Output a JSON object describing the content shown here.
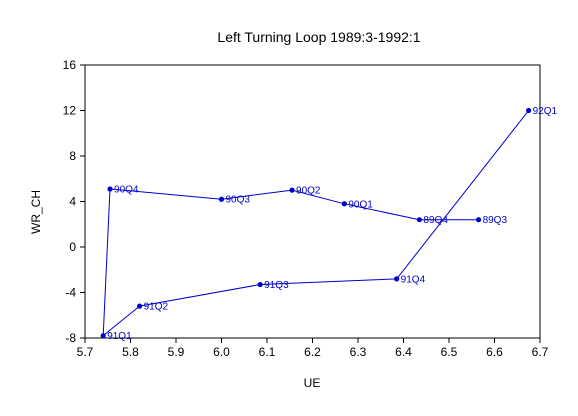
{
  "chart_data": {
    "type": "line",
    "title": "Left Turning Loop 1989:3-1992:1",
    "xlabel": "UE",
    "ylabel": "WR_CH",
    "xlim": [
      5.7,
      6.7
    ],
    "ylim": [
      -8,
      16
    ],
    "x_ticks": [
      "5.7",
      "5.8",
      "5.9",
      "6.0",
      "6.1",
      "6.2",
      "6.3",
      "6.4",
      "6.5",
      "6.6",
      "6.7"
    ],
    "y_ticks": [
      "-8",
      "-4",
      "0",
      "4",
      "8",
      "12",
      "16"
    ],
    "grid": false,
    "line_color": "#0000CC",
    "points": [
      {
        "label": "89Q3",
        "x": 6.565,
        "y": 2.4
      },
      {
        "label": "89Q4",
        "x": 6.435,
        "y": 2.4
      },
      {
        "label": "90Q1",
        "x": 6.27,
        "y": 3.8
      },
      {
        "label": "90Q2",
        "x": 6.155,
        "y": 5.0
      },
      {
        "label": "90Q3",
        "x": 6.0,
        "y": 4.2
      },
      {
        "label": "90Q4",
        "x": 5.755,
        "y": 5.1
      },
      {
        "label": "91Q1",
        "x": 5.74,
        "y": -7.8
      },
      {
        "label": "91Q2",
        "x": 5.82,
        "y": -5.2
      },
      {
        "label": "91Q3",
        "x": 6.085,
        "y": -3.3
      },
      {
        "label": "91Q4",
        "x": 6.385,
        "y": -2.8
      },
      {
        "label": "92Q1",
        "x": 6.675,
        "y": 12.0
      }
    ]
  }
}
